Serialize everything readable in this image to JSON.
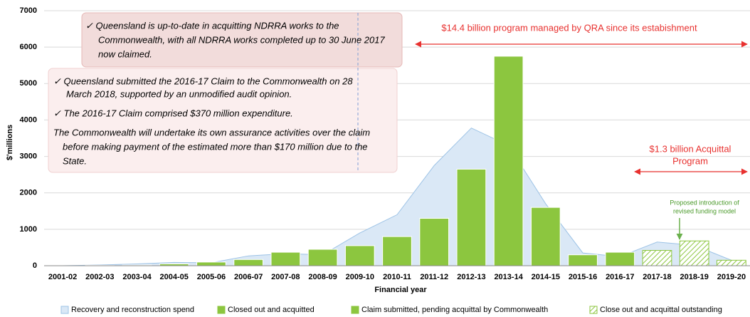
{
  "chart_data": {
    "type": "bar",
    "y_label": "$'millions",
    "x_label": "Financial year",
    "categories": [
      "2001-02",
      "2002-03",
      "2003-04",
      "2004-05",
      "2005-06",
      "2006-07",
      "2007-08",
      "2008-09",
      "2009-10",
      "2010-11",
      "2011-12",
      "2012-13",
      "2013-14",
      "2014-15",
      "2015-16",
      "2016-17",
      "2017-18",
      "2018-19",
      "2019-20"
    ],
    "ylim": [
      0,
      7000
    ],
    "yticks": [
      0,
      1000,
      2000,
      3000,
      4000,
      5000,
      6000,
      7000
    ],
    "grid": true,
    "area": {
      "name": "Recovery and reconstruction spend",
      "color": "#9dc3e6",
      "values": [
        0,
        20,
        50,
        90,
        80,
        270,
        330,
        300,
        900,
        1400,
        2750,
        3780,
        3300,
        1700,
        350,
        250,
        650,
        560,
        150
      ]
    },
    "series": [
      {
        "name": "Closed out and acquitted",
        "color": "#8cc63f",
        "values": [
          0,
          10,
          20,
          50,
          100,
          170,
          370,
          450,
          550,
          800,
          1300,
          2650,
          5750,
          1600,
          300,
          null,
          null,
          null,
          null
        ]
      },
      {
        "name": "Claim submitted, pending acquittal by Commonwealth",
        "color": "#8cc63f",
        "values": [
          null,
          null,
          null,
          null,
          null,
          null,
          null,
          null,
          null,
          null,
          null,
          null,
          null,
          null,
          null,
          370,
          null,
          null,
          null
        ]
      },
      {
        "name": "Close out and acquittal outstanding",
        "color": "#8cc63f",
        "hatched": true,
        "values": [
          null,
          null,
          null,
          null,
          null,
          null,
          null,
          null,
          null,
          null,
          null,
          null,
          null,
          null,
          null,
          null,
          420,
          680,
          150
        ]
      }
    ],
    "annotations": {
      "box1": [
        "✓ Queensland is up-to-date in acquitting NDRRA works to the",
        "Commonwealth, with all NDRRA works completed up to 30 June 2017",
        "now claimed."
      ],
      "box2": [
        "✓ Queensland submitted the 2016-17 Claim to the Commonwealth on 28",
        "March 2018, supported by an unmodified audit opinion.",
        "✓ The 2016-17 Claim comprised $370 million expenditure.",
        "The Commonwealth will undertake its own assurance activities over the claim",
        "before making payment of the estimated more than $170 million due to the",
        "State."
      ],
      "program": "$14.4 billion program managed by QRA since its estabishment",
      "acquittal": [
        "$1.3 billion Acquittal",
        "Program"
      ],
      "proposed": [
        "Proposed introduction of",
        "revised funding model"
      ]
    }
  }
}
